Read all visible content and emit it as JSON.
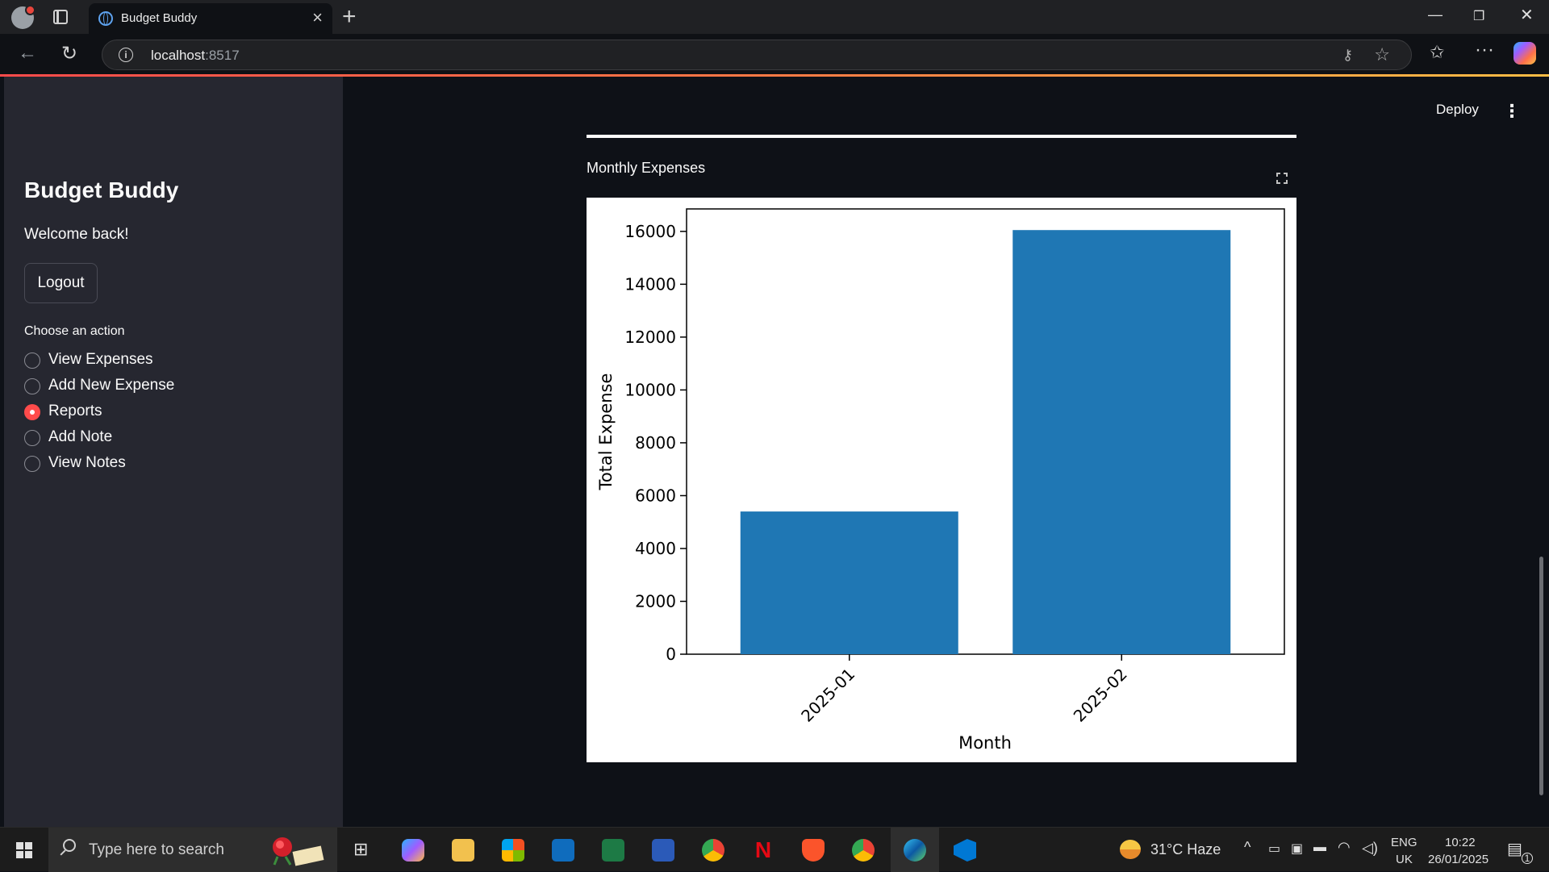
{
  "browser": {
    "tab_title": "Budget Buddy",
    "url_host": "localhost",
    "url_port": ":8517"
  },
  "sidebar": {
    "app_title": "Budget Buddy",
    "welcome": "Welcome back!",
    "logout_label": "Logout",
    "action_label": "Choose an action",
    "actions": [
      {
        "label": "View Expenses",
        "selected": false
      },
      {
        "label": "Add New Expense",
        "selected": false
      },
      {
        "label": "Reports",
        "selected": true
      },
      {
        "label": "Add Note",
        "selected": false
      },
      {
        "label": "View Notes",
        "selected": false
      }
    ]
  },
  "header": {
    "deploy_label": "Deploy"
  },
  "main": {
    "chart_caption": "Monthly Expenses"
  },
  "chart_data": {
    "type": "bar",
    "categories": [
      "2025-01",
      "2025-02"
    ],
    "values": [
      5400,
      16050
    ],
    "title": "",
    "xlabel": "Month",
    "ylabel": "Total Expense",
    "ylim": [
      0,
      16850
    ],
    "yticks": [
      0,
      2000,
      4000,
      6000,
      8000,
      10000,
      12000,
      14000,
      16000
    ],
    "bar_color": "#1f77b4",
    "grid": false
  },
  "taskbar": {
    "search_placeholder": "Type here to search",
    "weather": "31°C  Haze",
    "lang_top": "ENG",
    "lang_bottom": "UK",
    "time": "10:22",
    "date": "26/01/2025",
    "notifications": "1"
  }
}
